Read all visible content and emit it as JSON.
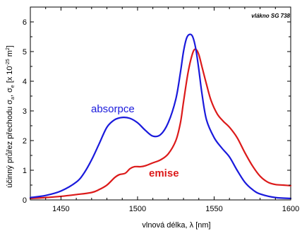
{
  "chart_data": {
    "type": "line",
    "title": "",
    "annotation": "vlákno SG 738",
    "xlabel": "vlnová délka, λ [nm]",
    "ylabel": "účinný průřez přechodu σa, σe [x 10^-25 m^2]",
    "ylabel_parts": {
      "main": "účinný průřez přechodu σ",
      "sub_a": "a",
      "comma": ", σ",
      "sub_e": "e",
      "bracket": " [x 10",
      "exp": "-25",
      "unit": " m",
      "unit_exp": "2",
      "close": "]"
    },
    "xlim": [
      1430,
      1600
    ],
    "ylim": [
      0,
      6.5
    ],
    "xticks": [
      1450,
      1500,
      1550,
      1600
    ],
    "yticks": [
      0,
      1,
      2,
      3,
      4,
      5,
      6
    ],
    "grid": false,
    "series": [
      {
        "name": "absorpce",
        "color": "#1a1adc",
        "x": [
          1430,
          1440,
          1450,
          1460,
          1465,
          1470,
          1475,
          1480,
          1485,
          1490,
          1495,
          1500,
          1505,
          1510,
          1515,
          1520,
          1525,
          1528,
          1530,
          1532,
          1534,
          1536,
          1538,
          1540,
          1542,
          1545,
          1550,
          1555,
          1560,
          1565,
          1570,
          1575,
          1580,
          1590,
          1600
        ],
        "values": [
          0.08,
          0.15,
          0.3,
          0.6,
          0.9,
          1.35,
          1.9,
          2.45,
          2.7,
          2.78,
          2.75,
          2.6,
          2.35,
          2.15,
          2.2,
          2.6,
          3.4,
          4.3,
          5.0,
          5.45,
          5.58,
          5.5,
          5.1,
          4.4,
          3.6,
          2.7,
          2.1,
          1.75,
          1.45,
          1.0,
          0.6,
          0.35,
          0.2,
          0.08,
          0.05
        ]
      },
      {
        "name": "emise",
        "color": "#dc1a1a",
        "x": [
          1430,
          1440,
          1450,
          1460,
          1470,
          1475,
          1480,
          1485,
          1488,
          1492,
          1495,
          1498,
          1502,
          1505,
          1510,
          1515,
          1520,
          1525,
          1528,
          1530,
          1533,
          1536,
          1538,
          1540,
          1542,
          1545,
          1548,
          1552,
          1556,
          1560,
          1565,
          1570,
          1575,
          1580,
          1585,
          1590,
          1595,
          1600
        ],
        "values": [
          0.05,
          0.08,
          0.12,
          0.18,
          0.25,
          0.35,
          0.5,
          0.75,
          0.85,
          0.9,
          1.05,
          1.12,
          1.12,
          1.15,
          1.25,
          1.35,
          1.55,
          2.0,
          2.6,
          3.3,
          4.3,
          4.95,
          5.08,
          4.9,
          4.5,
          3.9,
          3.35,
          2.9,
          2.65,
          2.45,
          2.1,
          1.6,
          1.15,
          0.8,
          0.6,
          0.52,
          0.5,
          0.48
        ]
      }
    ],
    "series_labels": [
      {
        "text": "absorpce",
        "color": "#1a1adc"
      },
      {
        "text": "emise",
        "color": "#dc1a1a"
      }
    ]
  }
}
